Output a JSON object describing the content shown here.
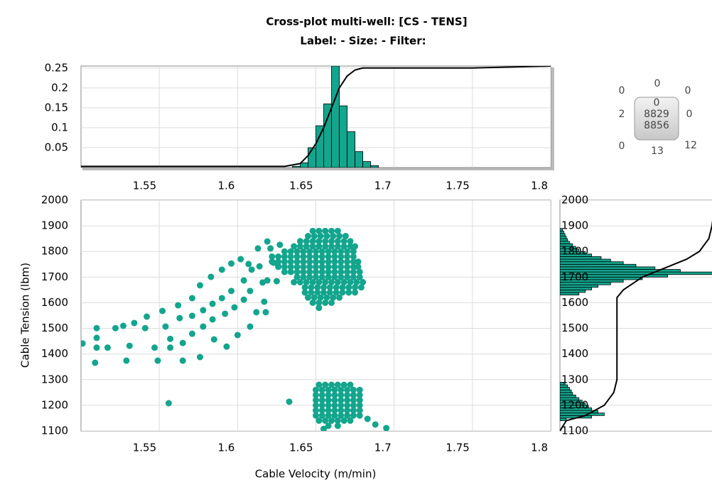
{
  "title": "Cross-plot multi-well: [CS - TENS]",
  "subtitle": "Label:  -  Size:  -  Filter:",
  "summary": {
    "top_left": 0,
    "top": 0,
    "top_right": 0,
    "left": 2,
    "center": [
      0,
      8829,
      8856
    ],
    "right": 0,
    "bottom_left": 0,
    "bottom": 13,
    "bottom_right": 12
  },
  "chart_data": [
    {
      "type": "histogram",
      "color": "#13a58d",
      "bins": [
        1.635,
        1.64,
        1.645,
        1.65,
        1.655,
        1.66,
        1.665,
        1.67,
        1.675,
        1.68,
        1.685,
        1.69
      ],
      "values": [
        0.003,
        0.012,
        0.05,
        0.105,
        0.16,
        0.255,
        0.155,
        0.09,
        0.04,
        0.015,
        0.005
      ],
      "ylim": [
        0,
        0.255
      ],
      "yticks": [
        0.05,
        0.1,
        0.15,
        0.2,
        0.25
      ],
      "xlim": [
        1.5,
        1.8
      ],
      "cumulative": {
        "x": [
          1.5,
          1.63,
          1.64,
          1.645,
          1.65,
          1.655,
          1.66,
          1.665,
          1.67,
          1.675,
          1.68,
          1.69,
          1.75,
          1.8
        ],
        "y": [
          0.003,
          0.003,
          0.01,
          0.03,
          0.06,
          0.1,
          0.15,
          0.2,
          0.23,
          0.245,
          0.25,
          0.25,
          0.25,
          0.255
        ]
      }
    },
    {
      "type": "scatter",
      "color": "#13a58d",
      "x_label": "Cable Velocity (m/min)",
      "y_label": "Cable Tension (lbm)",
      "xlim": [
        1.5,
        1.8
      ],
      "ylim": [
        1100,
        2000
      ],
      "xticks": [
        1.55,
        1.6,
        1.65,
        1.7,
        1.75,
        1.8
      ],
      "yticks": [
        1100,
        1200,
        1300,
        1400,
        1500,
        1600,
        1700,
        1800,
        1900,
        2000
      ],
      "grid": true,
      "points": [
        [
          1.501,
          1441
        ],
        [
          1.51,
          1501
        ],
        [
          1.51,
          1463
        ],
        [
          1.51,
          1425
        ],
        [
          1.509,
          1366
        ],
        [
          1.517,
          1425
        ],
        [
          1.522,
          1501
        ],
        [
          1.527,
          1510
        ],
        [
          1.534,
          1521
        ],
        [
          1.531,
          1432
        ],
        [
          1.529,
          1374
        ],
        [
          1.542,
          1546
        ],
        [
          1.541,
          1501
        ],
        [
          1.547,
          1425
        ],
        [
          1.549,
          1374
        ],
        [
          1.552,
          1568
        ],
        [
          1.554,
          1507
        ],
        [
          1.557,
          1425
        ],
        [
          1.557,
          1459
        ],
        [
          1.562,
          1590
        ],
        [
          1.563,
          1540
        ],
        [
          1.565,
          1443
        ],
        [
          1.565,
          1374
        ],
        [
          1.571,
          1618
        ],
        [
          1.571,
          1549
        ],
        [
          1.571,
          1479
        ],
        [
          1.576,
          1668
        ],
        [
          1.578,
          1571
        ],
        [
          1.578,
          1507
        ],
        [
          1.576,
          1388
        ],
        [
          1.583,
          1701
        ],
        [
          1.584,
          1596
        ],
        [
          1.584,
          1535
        ],
        [
          1.585,
          1457
        ],
        [
          1.59,
          1729
        ],
        [
          1.59,
          1618
        ],
        [
          1.592,
          1557
        ],
        [
          1.593,
          1429
        ],
        [
          1.596,
          1753
        ],
        [
          1.596,
          1646
        ],
        [
          1.598,
          1582
        ],
        [
          1.6,
          1474
        ],
        [
          1.602,
          1770
        ],
        [
          1.604,
          1687
        ],
        [
          1.604,
          1612
        ],
        [
          1.608,
          1507
        ],
        [
          1.607,
          1751
        ],
        [
          1.609,
          1729
        ],
        [
          1.608,
          1646
        ],
        [
          1.612,
          1563
        ],
        [
          1.613,
          1812
        ],
        [
          1.614,
          1742
        ],
        [
          1.616,
          1679
        ],
        [
          1.617,
          1604
        ],
        [
          1.618,
          1563
        ],
        [
          1.619,
          1839
        ],
        [
          1.621,
          1812
        ],
        [
          1.623,
          1756
        ],
        [
          1.627,
          1826
        ],
        [
          1.626,
          1742
        ],
        [
          1.619,
          1687
        ],
        [
          1.625,
          1684
        ],
        [
          1.556,
          1208
        ],
        [
          1.633,
          1214
        ],
        [
          1.683,
          1147
        ],
        [
          1.688,
          1125
        ],
        [
          1.695,
          1111
        ],
        [
          1.655,
          1108
        ],
        [
          1.648,
          1880
        ],
        [
          1.652,
          1880
        ],
        [
          1.656,
          1880
        ],
        [
          1.66,
          1880
        ],
        [
          1.664,
          1880
        ],
        [
          1.645,
          1860
        ],
        [
          1.649,
          1860
        ],
        [
          1.653,
          1860
        ],
        [
          1.657,
          1860
        ],
        [
          1.661,
          1860
        ],
        [
          1.665,
          1860
        ],
        [
          1.669,
          1860
        ],
        [
          1.64,
          1840
        ],
        [
          1.644,
          1840
        ],
        [
          1.648,
          1840
        ],
        [
          1.652,
          1840
        ],
        [
          1.656,
          1840
        ],
        [
          1.66,
          1840
        ],
        [
          1.664,
          1840
        ],
        [
          1.668,
          1840
        ],
        [
          1.672,
          1840
        ],
        [
          1.636,
          1820
        ],
        [
          1.64,
          1820
        ],
        [
          1.644,
          1820
        ],
        [
          1.648,
          1820
        ],
        [
          1.652,
          1820
        ],
        [
          1.656,
          1820
        ],
        [
          1.66,
          1820
        ],
        [
          1.664,
          1820
        ],
        [
          1.668,
          1820
        ],
        [
          1.672,
          1820
        ],
        [
          1.675,
          1820
        ],
        [
          1.63,
          1800
        ],
        [
          1.634,
          1800
        ],
        [
          1.638,
          1800
        ],
        [
          1.642,
          1800
        ],
        [
          1.646,
          1800
        ],
        [
          1.65,
          1800
        ],
        [
          1.654,
          1800
        ],
        [
          1.658,
          1800
        ],
        [
          1.662,
          1800
        ],
        [
          1.666,
          1800
        ],
        [
          1.67,
          1800
        ],
        [
          1.674,
          1800
        ],
        [
          1.622,
          1780
        ],
        [
          1.626,
          1780
        ],
        [
          1.63,
          1780
        ],
        [
          1.634,
          1780
        ],
        [
          1.638,
          1780
        ],
        [
          1.642,
          1780
        ],
        [
          1.646,
          1780
        ],
        [
          1.65,
          1780
        ],
        [
          1.654,
          1780
        ],
        [
          1.658,
          1780
        ],
        [
          1.662,
          1780
        ],
        [
          1.666,
          1780
        ],
        [
          1.67,
          1780
        ],
        [
          1.674,
          1780
        ],
        [
          1.622,
          1760
        ],
        [
          1.626,
          1760
        ],
        [
          1.63,
          1760
        ],
        [
          1.634,
          1760
        ],
        [
          1.638,
          1760
        ],
        [
          1.642,
          1760
        ],
        [
          1.646,
          1760
        ],
        [
          1.65,
          1760
        ],
        [
          1.654,
          1760
        ],
        [
          1.658,
          1760
        ],
        [
          1.662,
          1760
        ],
        [
          1.666,
          1760
        ],
        [
          1.67,
          1760
        ],
        [
          1.674,
          1760
        ],
        [
          1.677,
          1760
        ],
        [
          1.626,
          1740
        ],
        [
          1.63,
          1740
        ],
        [
          1.634,
          1740
        ],
        [
          1.638,
          1740
        ],
        [
          1.642,
          1740
        ],
        [
          1.646,
          1740
        ],
        [
          1.65,
          1740
        ],
        [
          1.654,
          1740
        ],
        [
          1.658,
          1740
        ],
        [
          1.662,
          1740
        ],
        [
          1.666,
          1740
        ],
        [
          1.67,
          1740
        ],
        [
          1.674,
          1740
        ],
        [
          1.677,
          1740
        ],
        [
          1.63,
          1720
        ],
        [
          1.634,
          1720
        ],
        [
          1.638,
          1720
        ],
        [
          1.642,
          1720
        ],
        [
          1.646,
          1720
        ],
        [
          1.65,
          1720
        ],
        [
          1.654,
          1720
        ],
        [
          1.658,
          1720
        ],
        [
          1.662,
          1720
        ],
        [
          1.666,
          1720
        ],
        [
          1.67,
          1720
        ],
        [
          1.674,
          1720
        ],
        [
          1.678,
          1720
        ],
        [
          1.638,
          1700
        ],
        [
          1.642,
          1700
        ],
        [
          1.646,
          1700
        ],
        [
          1.65,
          1700
        ],
        [
          1.654,
          1700
        ],
        [
          1.658,
          1700
        ],
        [
          1.662,
          1700
        ],
        [
          1.666,
          1700
        ],
        [
          1.67,
          1700
        ],
        [
          1.674,
          1700
        ],
        [
          1.678,
          1700
        ],
        [
          1.636,
          1680
        ],
        [
          1.64,
          1680
        ],
        [
          1.644,
          1680
        ],
        [
          1.648,
          1680
        ],
        [
          1.652,
          1680
        ],
        [
          1.656,
          1680
        ],
        [
          1.66,
          1680
        ],
        [
          1.664,
          1680
        ],
        [
          1.668,
          1680
        ],
        [
          1.672,
          1680
        ],
        [
          1.676,
          1680
        ],
        [
          1.68,
          1680
        ],
        [
          1.643,
          1660
        ],
        [
          1.647,
          1660
        ],
        [
          1.651,
          1660
        ],
        [
          1.655,
          1660
        ],
        [
          1.659,
          1660
        ],
        [
          1.663,
          1660
        ],
        [
          1.667,
          1660
        ],
        [
          1.671,
          1660
        ],
        [
          1.675,
          1660
        ],
        [
          1.679,
          1660
        ],
        [
          1.643,
          1640
        ],
        [
          1.647,
          1640
        ],
        [
          1.651,
          1640
        ],
        [
          1.655,
          1640
        ],
        [
          1.659,
          1640
        ],
        [
          1.663,
          1640
        ],
        [
          1.667,
          1640
        ],
        [
          1.671,
          1640
        ],
        [
          1.675,
          1640
        ],
        [
          1.645,
          1620
        ],
        [
          1.649,
          1620
        ],
        [
          1.653,
          1620
        ],
        [
          1.657,
          1620
        ],
        [
          1.661,
          1620
        ],
        [
          1.665,
          1620
        ],
        [
          1.648,
          1600
        ],
        [
          1.652,
          1600
        ],
        [
          1.656,
          1600
        ],
        [
          1.66,
          1600
        ],
        [
          1.652,
          1580
        ],
        [
          1.652,
          1280
        ],
        [
          1.656,
          1280
        ],
        [
          1.66,
          1280
        ],
        [
          1.664,
          1280
        ],
        [
          1.668,
          1280
        ],
        [
          1.672,
          1280
        ],
        [
          1.65,
          1260
        ],
        [
          1.654,
          1260
        ],
        [
          1.658,
          1260
        ],
        [
          1.662,
          1260
        ],
        [
          1.666,
          1260
        ],
        [
          1.67,
          1260
        ],
        [
          1.674,
          1260
        ],
        [
          1.678,
          1260
        ],
        [
          1.65,
          1240
        ],
        [
          1.654,
          1240
        ],
        [
          1.658,
          1240
        ],
        [
          1.662,
          1240
        ],
        [
          1.666,
          1240
        ],
        [
          1.67,
          1240
        ],
        [
          1.674,
          1240
        ],
        [
          1.678,
          1240
        ],
        [
          1.65,
          1220
        ],
        [
          1.654,
          1220
        ],
        [
          1.658,
          1220
        ],
        [
          1.662,
          1220
        ],
        [
          1.666,
          1220
        ],
        [
          1.67,
          1220
        ],
        [
          1.674,
          1220
        ],
        [
          1.678,
          1220
        ],
        [
          1.65,
          1200
        ],
        [
          1.654,
          1200
        ],
        [
          1.658,
          1200
        ],
        [
          1.662,
          1200
        ],
        [
          1.666,
          1200
        ],
        [
          1.67,
          1200
        ],
        [
          1.674,
          1200
        ],
        [
          1.678,
          1200
        ],
        [
          1.65,
          1180
        ],
        [
          1.654,
          1180
        ],
        [
          1.658,
          1180
        ],
        [
          1.662,
          1180
        ],
        [
          1.666,
          1180
        ],
        [
          1.67,
          1180
        ],
        [
          1.674,
          1180
        ],
        [
          1.678,
          1180
        ],
        [
          1.65,
          1160
        ],
        [
          1.654,
          1160
        ],
        [
          1.658,
          1160
        ],
        [
          1.662,
          1160
        ],
        [
          1.666,
          1160
        ],
        [
          1.67,
          1160
        ],
        [
          1.674,
          1160
        ],
        [
          1.678,
          1160
        ],
        [
          1.652,
          1140
        ],
        [
          1.656,
          1140
        ],
        [
          1.66,
          1140
        ],
        [
          1.664,
          1140
        ],
        [
          1.668,
          1140
        ],
        [
          1.672,
          1140
        ],
        [
          1.658,
          1120
        ],
        [
          1.664,
          1120
        ]
      ]
    },
    {
      "type": "histogram",
      "orientation": "horizontal",
      "color": "#13a58d",
      "xlim": [
        0,
        0.24
      ],
      "ylim": [
        1100,
        2000
      ],
      "bins": [
        1140,
        1150,
        1160,
        1170,
        1180,
        1190,
        1200,
        1210,
        1220,
        1230,
        1240,
        1250,
        1260,
        1270,
        1280,
        1290,
        1300,
        1310,
        1320,
        1330,
        1340,
        1350,
        1360,
        1370,
        1380,
        1390,
        1400,
        1410,
        1420,
        1430,
        1440,
        1450,
        1460,
        1470,
        1480,
        1490,
        1500,
        1510,
        1520,
        1530,
        1540,
        1550,
        1560,
        1570,
        1580,
        1590,
        1600,
        1610,
        1620,
        1630,
        1640,
        1650,
        1660,
        1670,
        1680,
        1690,
        1700,
        1710,
        1720,
        1730,
        1740,
        1750,
        1760,
        1770,
        1780,
        1790,
        1800,
        1810,
        1820,
        1830,
        1840,
        1850,
        1860,
        1870,
        1880,
        1890
      ],
      "values": [
        0.01,
        0.05,
        0.07,
        0.06,
        0.05,
        0.045,
        0.04,
        0.035,
        0.03,
        0.025,
        0.02,
        0.018,
        0.015,
        0.012,
        0.008,
        0,
        0,
        0,
        0,
        0,
        0,
        0,
        0,
        0,
        0,
        0,
        0,
        0,
        0,
        0,
        0,
        0,
        0,
        0,
        0,
        0,
        0,
        0,
        0,
        0,
        0,
        0,
        0,
        0,
        0,
        0,
        0,
        0,
        0,
        0.03,
        0.04,
        0.05,
        0.06,
        0.08,
        0.1,
        0.13,
        0.17,
        0.25,
        0.19,
        0.15,
        0.12,
        0.1,
        0.08,
        0.065,
        0.05,
        0.04,
        0.03,
        0.025,
        0.02,
        0.015,
        0.012,
        0.01,
        0.008,
        0.006,
        0.004
      ],
      "cumulative": {
        "x": [
          0,
          0.01,
          0.04,
          0.07,
          0.085,
          0.09,
          0.09,
          0.09,
          0.1,
          0.13,
          0.17,
          0.2,
          0.22,
          0.235,
          0.24,
          0.245
        ],
        "y": [
          1100,
          1140,
          1160,
          1200,
          1250,
          1300,
          1500,
          1620,
          1650,
          1700,
          1740,
          1770,
          1800,
          1850,
          1900,
          2000
        ]
      }
    }
  ]
}
